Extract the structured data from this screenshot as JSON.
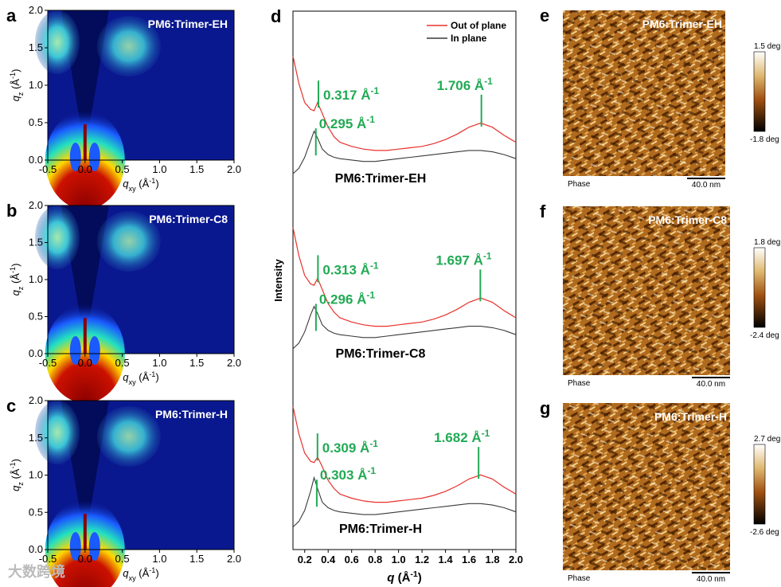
{
  "panel_labels": {
    "a": "a",
    "b": "b",
    "c": "c",
    "d": "d",
    "e": "e",
    "f": "f",
    "g": "g"
  },
  "colors": {
    "giwaxs_bg": "#0a1890",
    "afm_dark": "#3a1a00",
    "afm_light": "#f3d9a0",
    "ann_green": "#22aa55",
    "oop_red": "#e8312c",
    "ip_dark": "#3a3a3a"
  },
  "giwaxs": [
    {
      "sample": "PM6:Trimer-EH"
    },
    {
      "sample": "PM6:Trimer-C8"
    },
    {
      "sample": "PM6:Trimer-H"
    }
  ],
  "giwaxs_axes": {
    "xlabel_main": "q",
    "xlabel_sub": "xy",
    "xlabel_unit_pre": " (Å",
    "xlabel_unit_exp": "-1",
    "xlabel_unit_post": ")",
    "ylabel_main": "q",
    "ylabel_sub": "z",
    "ylabel_unit": " (Å",
    "ylabel_unit_exp": "-1",
    "ylabel_unit_post": ")",
    "xticks": [
      "-0.5",
      "0.0",
      "0.5",
      "1.0",
      "1.5",
      "2.0"
    ],
    "yticks": [
      "0.0",
      "0.5",
      "1.0",
      "1.5",
      "2.0"
    ]
  },
  "afm": [
    {
      "sample": "PM6:Trimer-EH",
      "scale_max": "1.5 deg",
      "scale_min": "-1.8 deg",
      "mode": "Phase",
      "bar": "40.0 nm"
    },
    {
      "sample": "PM6:Trimer-C8",
      "scale_max": "1.8 deg",
      "scale_min": "-2.4 deg",
      "mode": "Phase",
      "bar": "40.0 nm"
    },
    {
      "sample": "PM6:Trimer-H",
      "scale_max": "2.7 deg",
      "scale_min": "-2.6 deg",
      "mode": "Phase",
      "bar": "40.0 nm"
    }
  ],
  "watermark": "大数跨境",
  "chart_data": {
    "type": "line",
    "title": "",
    "xlabel": "q (Å-1)",
    "xlabel_main": "q",
    "xlabel_unit": " (Å",
    "xlabel_unit_exp": "-1",
    "xlabel_unit_post": ")",
    "ylabel": "Intensity",
    "xlim": [
      0.1,
      2.0
    ],
    "xticks": [
      "0.2",
      "0.4",
      "0.6",
      "0.8",
      "1.0",
      "1.2",
      "1.4",
      "1.6",
      "1.8",
      "2.0"
    ],
    "legend": [
      {
        "name": "Out of plane",
        "color": "#e8312c"
      },
      {
        "name": "In plane",
        "color": "#3a3a3a"
      }
    ],
    "legend_position": "top-right",
    "x": [
      0.1,
      0.15,
      0.2,
      0.25,
      0.28,
      0.31,
      0.35,
      0.4,
      0.45,
      0.5,
      0.6,
      0.7,
      0.8,
      0.9,
      1.0,
      1.1,
      1.2,
      1.3,
      1.4,
      1.5,
      1.6,
      1.7,
      1.8,
      1.9,
      2.0
    ],
    "samples": [
      {
        "name": "PM6:Trimer-EH",
        "oop": [
          8.9,
          7.9,
          7.2,
          6.95,
          6.9,
          7.2,
          6.8,
          6.3,
          5.95,
          5.75,
          5.6,
          5.5,
          5.45,
          5.45,
          5.5,
          5.55,
          5.6,
          5.7,
          5.85,
          6.05,
          6.3,
          6.45,
          6.3,
          6.0,
          5.75
        ],
        "ip": [
          4.6,
          4.8,
          5.2,
          5.8,
          6.15,
          5.9,
          5.5,
          5.3,
          5.2,
          5.15,
          5.1,
          5.05,
          5.05,
          5.1,
          5.15,
          5.2,
          5.25,
          5.3,
          5.35,
          5.4,
          5.45,
          5.45,
          5.4,
          5.3,
          5.15
        ],
        "peaks": [
          {
            "q": 0.317,
            "label": "0.317 Å",
            "exp": "-1"
          },
          {
            "q": 0.295,
            "label": "0.295 Å",
            "exp": "-1"
          },
          {
            "q": 1.706,
            "label": "1.706 Å",
            "exp": "-1"
          }
        ]
      },
      {
        "name": "PM6:Trimer-C8",
        "oop": [
          8.9,
          7.9,
          7.2,
          6.9,
          6.85,
          7.1,
          6.7,
          6.2,
          5.9,
          5.7,
          5.55,
          5.45,
          5.4,
          5.4,
          5.45,
          5.5,
          5.55,
          5.65,
          5.8,
          6.0,
          6.25,
          6.4,
          6.25,
          5.95,
          5.7
        ],
        "ip": [
          4.6,
          4.8,
          5.2,
          5.8,
          6.1,
          5.85,
          5.45,
          5.25,
          5.15,
          5.1,
          5.05,
          5.0,
          5.0,
          5.05,
          5.1,
          5.15,
          5.2,
          5.25,
          5.3,
          5.35,
          5.4,
          5.4,
          5.35,
          5.25,
          5.1
        ],
        "peaks": [
          {
            "q": 0.313,
            "label": "0.313 Å",
            "exp": "-1"
          },
          {
            "q": 0.296,
            "label": "0.296 Å",
            "exp": "-1"
          },
          {
            "q": 1.697,
            "label": "1.697 Å",
            "exp": "-1"
          }
        ]
      },
      {
        "name": "PM6:Trimer-H",
        "oop": [
          8.9,
          7.9,
          7.2,
          6.9,
          6.85,
          7.05,
          6.7,
          6.2,
          5.9,
          5.7,
          5.55,
          5.45,
          5.4,
          5.4,
          5.45,
          5.5,
          5.55,
          5.65,
          5.8,
          6.0,
          6.25,
          6.4,
          6.25,
          5.95,
          5.7
        ],
        "ip": [
          4.5,
          4.7,
          5.1,
          5.8,
          6.3,
          5.9,
          5.4,
          5.2,
          5.1,
          5.05,
          5.0,
          4.95,
          4.95,
          5.0,
          5.05,
          5.1,
          5.15,
          5.2,
          5.25,
          5.3,
          5.35,
          5.35,
          5.3,
          5.2,
          5.05
        ],
        "peaks": [
          {
            "q": 0.309,
            "label": "0.309 Å",
            "exp": "-1"
          },
          {
            "q": 0.303,
            "label": "0.303 Å",
            "exp": "-1"
          },
          {
            "q": 1.682,
            "label": "1.682 Å",
            "exp": "-1"
          }
        ]
      }
    ]
  }
}
